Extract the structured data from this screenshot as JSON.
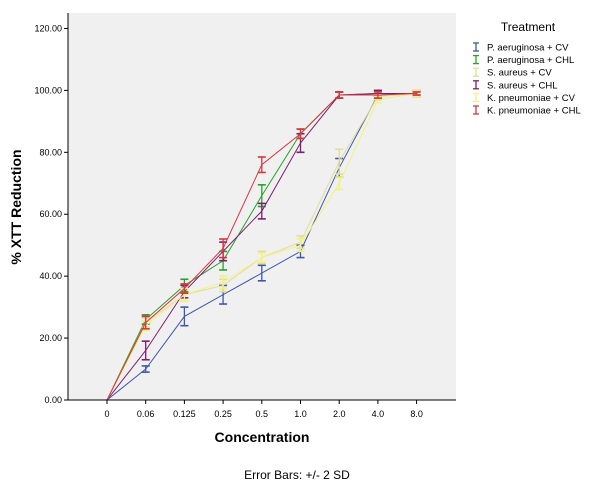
{
  "chart_data": {
    "type": "line",
    "xlabel": "Concentration",
    "ylabel": "% XTT Reduction",
    "categories": [
      "0",
      "0.06",
      "0.125",
      "0.25",
      "0.5",
      "1.0",
      "2.0",
      "4.0",
      "8.0"
    ],
    "y_ticks": [
      "0.00",
      "20.00",
      "40.00",
      "60.00",
      "80.00",
      "100.00",
      "120.00"
    ],
    "ylim": [
      0,
      125
    ],
    "grid": false,
    "legend_title": "Treatment",
    "legend_position": "right",
    "footnote": "Error Bars: +/- 2 SD",
    "series": [
      {
        "name": "P. aeruginosa + CV",
        "color": "#3e58ac",
        "values": [
          0,
          10,
          27,
          34,
          41,
          48,
          75,
          98.5,
          99
        ],
        "errors": [
          0,
          1,
          3,
          3,
          2.5,
          2,
          3,
          1.5,
          1
        ]
      },
      {
        "name": "P. aeruginosa + CHL",
        "color": "#2ca02c",
        "values": [
          0,
          26,
          37,
          45,
          66,
          86,
          98.5,
          99,
          99
        ],
        "errors": [
          0,
          1.5,
          2,
          3,
          3.5,
          1.5,
          1,
          1,
          0.5
        ]
      },
      {
        "name": "S. aureus + CV",
        "color": "#e2dd9a",
        "values": [
          0,
          25,
          34,
          37,
          46,
          51,
          77,
          98,
          99
        ],
        "errors": [
          0,
          1.5,
          2,
          2,
          2,
          2,
          4,
          1,
          1
        ]
      },
      {
        "name": "S. aureus + CHL",
        "color": "#7b1f6e",
        "values": [
          0,
          16,
          35,
          48,
          61,
          83,
          98.5,
          99,
          99
        ],
        "errors": [
          0,
          3,
          2,
          3,
          2.5,
          3,
          1,
          1,
          1
        ]
      },
      {
        "name": "K. pneumoniae + CV",
        "color": "#f3f27a",
        "values": [
          0,
          24,
          34,
          38,
          46,
          50,
          70,
          97,
          99
        ],
        "errors": [
          0,
          1.5,
          2,
          2,
          1.5,
          2,
          2,
          1,
          1
        ]
      },
      {
        "name": "K. pneumoniae + CHL",
        "color": "#d9363e",
        "values": [
          0,
          25,
          36,
          49,
          76,
          86,
          98.5,
          98.5,
          99
        ],
        "errors": [
          0,
          2,
          1.5,
          3,
          2.5,
          1.5,
          1,
          1,
          0.5
        ]
      }
    ]
  }
}
